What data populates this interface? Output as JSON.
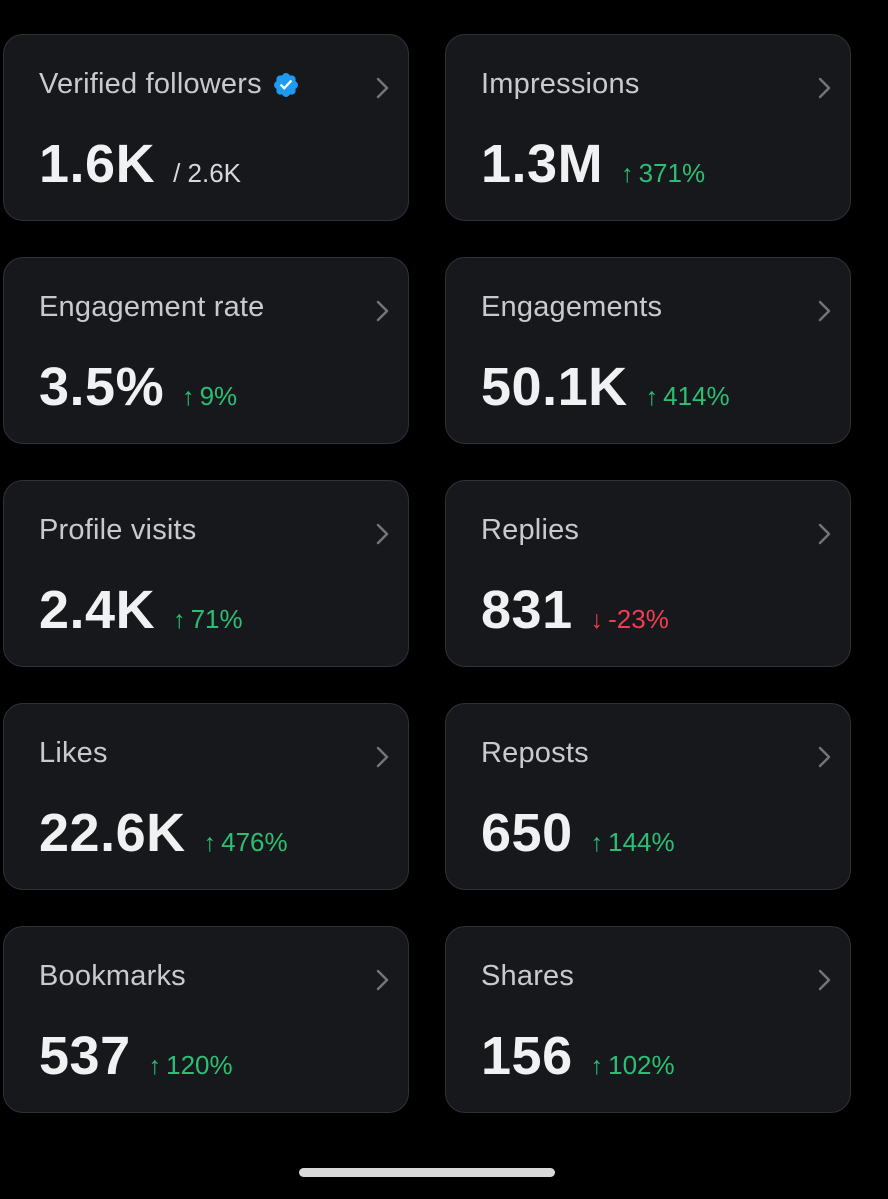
{
  "colors": {
    "background": "#000000",
    "card_background": "#16181c",
    "card_border": "#2f3336",
    "positive": "#2cbf73",
    "negative": "#f23d4f",
    "verified_badge": "#1d9bf0"
  },
  "cards": [
    {
      "title": "Verified followers",
      "value": "1.6K",
      "sub": "/ 2.6K",
      "badge_icon": "verified-badge-icon"
    },
    {
      "title": "Impressions",
      "value": "1.3M",
      "delta": "371%",
      "direction": "up"
    },
    {
      "title": "Engagement rate",
      "value": "3.5%",
      "delta": "9%",
      "direction": "up"
    },
    {
      "title": "Engagements",
      "value": "50.1K",
      "delta": "414%",
      "direction": "up"
    },
    {
      "title": "Profile visits",
      "value": "2.4K",
      "delta": "71%",
      "direction": "up"
    },
    {
      "title": "Replies",
      "value": "831",
      "delta": "-23%",
      "direction": "down"
    },
    {
      "title": "Likes",
      "value": "22.6K",
      "delta": "476%",
      "direction": "up"
    },
    {
      "title": "Reposts",
      "value": "650",
      "delta": "144%",
      "direction": "up"
    },
    {
      "title": "Bookmarks",
      "value": "537",
      "delta": "120%",
      "direction": "up"
    },
    {
      "title": "Shares",
      "value": "156",
      "delta": "102%",
      "direction": "up"
    }
  ],
  "icons": {
    "chevron": "chevron-right-icon",
    "up": "arrow-up-icon",
    "down": "arrow-down-icon"
  }
}
